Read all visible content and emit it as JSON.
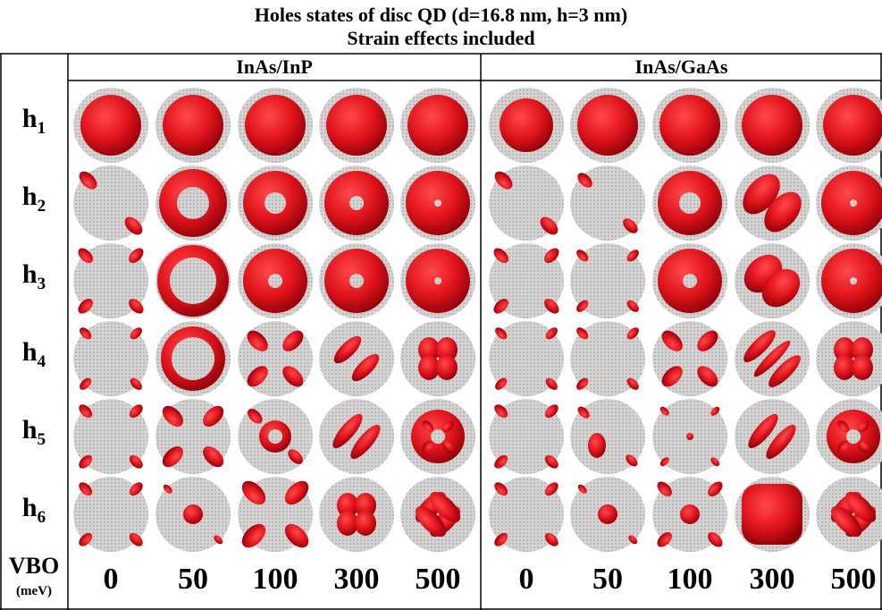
{
  "title": "Holes states of disc QD (d=16.8 nm, h=3 nm)",
  "subtitle": "Strain effects included",
  "groups": [
    {
      "label": "InAs/InP"
    },
    {
      "label": "InAs/GaAs"
    }
  ],
  "rows": [
    {
      "state": "h",
      "index": "1"
    },
    {
      "state": "h",
      "index": "2"
    },
    {
      "state": "h",
      "index": "3"
    },
    {
      "state": "h",
      "index": "4"
    },
    {
      "state": "h",
      "index": "5"
    },
    {
      "state": "h",
      "index": "6"
    }
  ],
  "vbo_label": {
    "line1": "VBO",
    "line2": "(meV)"
  },
  "vbo_values": [
    "0",
    "50",
    "100",
    "300",
    "500",
    "0",
    "50",
    "100",
    "300",
    "500"
  ],
  "colors": {
    "density": "#e0141c",
    "density_dark": "#8c0008",
    "disc_background": "#c9c6c6",
    "grid_line": "#000000"
  }
}
